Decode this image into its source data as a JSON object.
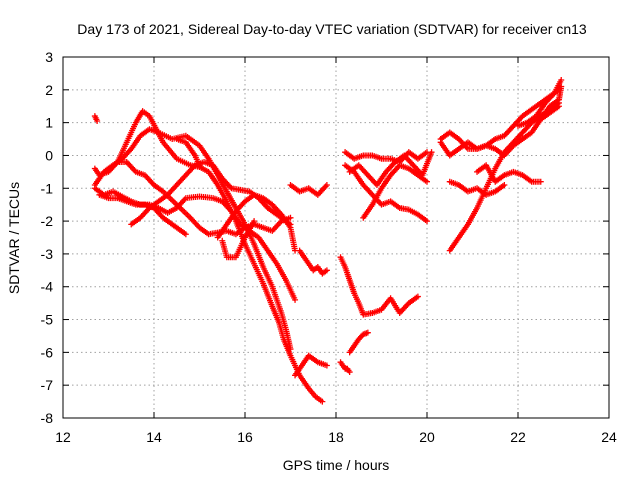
{
  "chart_data": {
    "type": "scatter",
    "title": "Day 173 of 2021, Sidereal Day-to-day VTEC variation (SDTVAR) for receiver cn13",
    "xlabel": "GPS time / hours",
    "ylabel": "SDTVAR / TECUs",
    "xlim": [
      12,
      24
    ],
    "ylim": [
      -8,
      3
    ],
    "x_ticks": [
      12,
      14,
      16,
      18,
      20,
      22,
      24
    ],
    "y_ticks": [
      3,
      2,
      1,
      0,
      -1,
      -2,
      -3,
      -4,
      -5,
      -6,
      -7,
      -8
    ],
    "grid": true,
    "legend": "none",
    "marker": "plus",
    "color": "#ff0000",
    "series": [
      {
        "x": [
          12.7,
          12.75
        ],
        "y": [
          1.2,
          1.05
        ]
      },
      {
        "x": [
          12.7,
          12.8,
          13.0,
          13.2,
          13.4,
          13.6,
          13.75,
          13.9,
          14.05,
          14.2,
          14.5,
          14.8,
          15.0,
          15.2,
          15.4,
          15.6,
          15.8,
          16.0,
          16.2,
          16.4,
          16.6,
          16.75,
          16.85,
          17.0,
          17.2,
          17.4,
          17.55,
          17.7
        ],
        "y": [
          -0.4,
          -0.6,
          -0.5,
          -0.2,
          0.4,
          1.0,
          1.35,
          1.2,
          0.8,
          0.4,
          -0.1,
          -0.3,
          -0.35,
          -0.5,
          -0.9,
          -1.4,
          -2.0,
          -2.7,
          -3.3,
          -3.9,
          -4.6,
          -5.1,
          -5.6,
          -6.1,
          -6.7,
          -7.1,
          -7.35,
          -7.5
        ]
      },
      {
        "x": [
          12.7,
          12.9,
          13.1,
          13.3,
          13.5,
          13.7,
          13.9,
          14.1,
          14.4,
          14.7,
          15.0,
          15.2,
          15.4,
          15.6,
          15.8,
          16.0,
          16.2,
          16.4,
          16.6,
          16.8,
          16.9,
          17.0
        ],
        "y": [
          -0.9,
          -0.5,
          -0.3,
          -0.1,
          0.2,
          0.6,
          0.8,
          0.7,
          0.5,
          0.6,
          0.3,
          -0.1,
          -0.6,
          -1.1,
          -1.6,
          -2.1,
          -2.7,
          -3.4,
          -4.0,
          -4.8,
          -5.3,
          -5.9
        ]
      },
      {
        "x": [
          12.7,
          12.9,
          13.1,
          13.3,
          13.5,
          13.7,
          13.9,
          14.1,
          14.3,
          14.5,
          14.7,
          15.0,
          15.3,
          15.5,
          15.7,
          15.9,
          16.1,
          16.3,
          16.5,
          16.7,
          16.9,
          17.1
        ],
        "y": [
          -1.0,
          -1.2,
          -1.1,
          -1.25,
          -1.4,
          -1.5,
          -1.5,
          -1.6,
          -1.75,
          -1.6,
          -1.3,
          -1.25,
          -1.3,
          -1.4,
          -1.7,
          -2.1,
          -2.3,
          -2.5,
          -2.9,
          -3.3,
          -3.8,
          -4.4
        ]
      },
      {
        "x": [
          12.8,
          13.0,
          13.2,
          13.4,
          13.6,
          13.8,
          14.0,
          14.2,
          14.4,
          14.6,
          14.7
        ],
        "y": [
          -1.2,
          -1.3,
          -1.3,
          -1.4,
          -1.5,
          -1.5,
          -1.6,
          -1.9,
          -2.1,
          -2.3,
          -2.4
        ]
      },
      {
        "x": [
          13.0,
          13.2,
          13.4,
          13.6,
          13.8,
          14.0,
          14.2,
          14.5,
          14.8,
          15.0,
          15.2,
          15.4,
          15.6,
          15.8,
          16.0,
          16.2,
          16.4,
          16.6,
          16.8,
          17.0
        ],
        "y": [
          -0.4,
          -0.2,
          -0.2,
          -0.5,
          -0.6,
          -0.9,
          -1.1,
          -1.5,
          -1.9,
          -2.2,
          -2.4,
          -2.35,
          -2.3,
          -2.4,
          -2.2,
          -2.1,
          -2.2,
          -2.3,
          -2.0,
          -1.9
        ]
      },
      {
        "x": [
          13.5,
          13.7,
          13.9,
          14.1,
          14.3,
          14.5,
          14.7,
          14.9,
          15.1,
          15.3,
          15.5,
          15.7,
          15.9,
          16.1,
          16.3,
          16.5,
          16.7,
          16.9,
          17.0
        ],
        "y": [
          -2.1,
          -1.9,
          -1.6,
          -1.4,
          -1.2,
          -0.9,
          -0.6,
          -0.3,
          -0.2,
          -0.3,
          -0.7,
          -1.0,
          -1.05,
          -1.1,
          -1.3,
          -1.6,
          -1.8,
          -2.0,
          -2.1
        ]
      },
      {
        "x": [
          14.5,
          14.7,
          14.9,
          15.0
        ],
        "y": [
          0.5,
          0.4,
          0.0,
          -0.3
        ]
      },
      {
        "x": [
          15.4,
          15.6,
          15.8,
          16.0,
          16.2,
          16.4,
          16.6,
          16.8,
          17.0,
          17.1
        ],
        "y": [
          -2.5,
          -2.1,
          -1.7,
          -1.4,
          -1.2,
          -1.3,
          -1.5,
          -1.8,
          -2.2,
          -2.9
        ]
      },
      {
        "x": [
          15.5,
          15.6,
          15.8,
          16.0,
          16.2
        ],
        "y": [
          -2.6,
          -3.1,
          -3.1,
          -2.5,
          -2.0
        ]
      },
      {
        "x": [
          17.0,
          17.2,
          17.4,
          17.6,
          17.8
        ],
        "y": [
          -0.9,
          -1.1,
          -1.0,
          -1.2,
          -0.9
        ]
      },
      {
        "x": [
          17.2,
          17.3,
          17.4,
          17.5,
          17.6,
          17.7,
          17.8
        ],
        "y": [
          -2.9,
          -3.1,
          -3.3,
          -3.5,
          -3.4,
          -3.6,
          -3.5
        ]
      },
      {
        "x": [
          17.1,
          17.2,
          17.4,
          17.6,
          17.8
        ],
        "y": [
          -6.7,
          -6.5,
          -6.1,
          -6.3,
          -6.4
        ]
      },
      {
        "x": [
          18.1,
          18.15,
          18.2,
          18.25,
          18.3
        ],
        "y": [
          -6.3,
          -6.4,
          -6.5,
          -6.5,
          -6.6
        ]
      },
      {
        "x": [
          18.3,
          18.4,
          18.5,
          18.6,
          18.7
        ],
        "y": [
          -6.0,
          -5.8,
          -5.6,
          -5.45,
          -5.4
        ]
      },
      {
        "x": [
          18.1,
          18.2,
          18.3,
          18.4,
          18.5,
          18.6,
          18.8,
          19.0,
          19.2,
          19.4,
          19.6,
          19.8
        ],
        "y": [
          -3.1,
          -3.4,
          -3.8,
          -4.2,
          -4.5,
          -4.85,
          -4.8,
          -4.7,
          -4.35,
          -4.8,
          -4.5,
          -4.3
        ]
      },
      {
        "x": [
          18.2,
          18.4,
          18.6,
          18.8,
          19.0,
          19.2,
          19.4,
          19.6,
          19.8,
          20.0
        ],
        "y": [
          0.1,
          -0.1,
          0.0,
          0.0,
          -0.1,
          -0.1,
          -0.2,
          0.1,
          -0.1,
          0.1
        ]
      },
      {
        "x": [
          18.2,
          18.4,
          18.6,
          18.8,
          19.0,
          19.2,
          19.4,
          19.6,
          19.8,
          20.0
        ],
        "y": [
          -0.3,
          -0.5,
          -0.9,
          -1.2,
          -1.5,
          -1.4,
          -1.6,
          -1.65,
          -1.8,
          -2.0
        ]
      },
      {
        "x": [
          18.6,
          18.8,
          19.0,
          19.2,
          19.4,
          19.6,
          19.8,
          20.0
        ],
        "y": [
          -1.9,
          -1.5,
          -1.0,
          -0.6,
          -0.3,
          -0.4,
          -0.6,
          -0.8
        ]
      },
      {
        "x": [
          18.3,
          18.5,
          18.7,
          18.9,
          19.1,
          19.3,
          19.5,
          19.7,
          19.9,
          20.1
        ],
        "y": [
          -0.5,
          -0.3,
          -0.6,
          -0.9,
          -0.5,
          -0.2,
          0.0,
          -0.3,
          -0.6,
          0.1
        ]
      },
      {
        "x": [
          20.3,
          20.5,
          20.7,
          20.9,
          21.1,
          21.3,
          21.5,
          21.7,
          21.9,
          22.1,
          22.3,
          22.5,
          22.7,
          22.9
        ],
        "y": [
          0.5,
          0.7,
          0.5,
          0.2,
          0.2,
          0.3,
          0.5,
          0.6,
          0.9,
          1.2,
          1.4,
          1.6,
          1.8,
          2.0
        ]
      },
      {
        "x": [
          20.3,
          20.5,
          20.7,
          20.9,
          21.1,
          21.3,
          21.5,
          21.7,
          21.9,
          22.1,
          22.3,
          22.5,
          22.7,
          22.9
        ],
        "y": [
          0.4,
          0.0,
          0.2,
          0.4,
          0.2,
          0.3,
          0.2,
          0.0,
          0.3,
          0.5,
          0.7,
          1.1,
          1.3,
          1.5
        ]
      },
      {
        "x": [
          20.5,
          20.7,
          20.9,
          21.1,
          21.3,
          21.5,
          21.7,
          21.9,
          22.1,
          22.3,
          22.5,
          22.7,
          22.9
        ],
        "y": [
          -2.9,
          -2.5,
          -2.1,
          -1.6,
          -1.0,
          -0.4,
          0.1,
          0.4,
          0.7,
          1.0,
          1.2,
          1.4,
          1.6
        ]
      },
      {
        "x": [
          20.5,
          20.7,
          20.9,
          21.1,
          21.3,
          21.5,
          21.7
        ],
        "y": [
          -0.8,
          -0.9,
          -1.1,
          -1.0,
          -1.2,
          -1.1,
          -0.9
        ]
      },
      {
        "x": [
          21.1,
          21.3,
          21.5,
          21.7,
          21.9,
          22.1,
          22.3,
          22.5
        ],
        "y": [
          -0.5,
          -0.3,
          -0.8,
          -0.6,
          -0.5,
          -0.6,
          -0.8,
          -0.8
        ]
      },
      {
        "x": [
          22.0,
          22.2,
          22.4,
          22.6,
          22.8,
          22.95
        ],
        "y": [
          0.9,
          1.0,
          1.2,
          1.6,
          1.9,
          2.3
        ]
      },
      {
        "x": [
          22.5,
          22.7,
          22.9,
          22.95
        ],
        "y": [
          1.1,
          1.5,
          1.7,
          2.1
        ]
      }
    ]
  }
}
